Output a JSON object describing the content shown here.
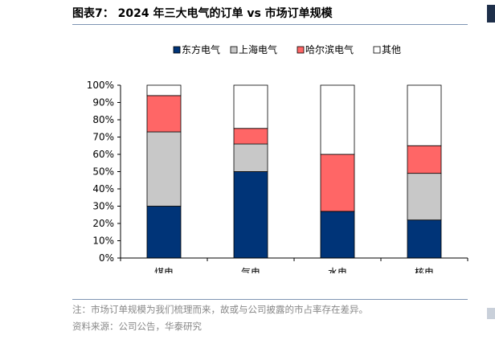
{
  "header": {
    "title": "图表7： 2024 年三大电气的订单 vs 市场订单规模"
  },
  "chart_data": {
    "type": "bar",
    "stacked": true,
    "normalized": true,
    "categories": [
      "煤电",
      "气电",
      "水电",
      "核电"
    ],
    "series": [
      {
        "name": "东方电气",
        "color": "#003478",
        "values": [
          30,
          50,
          27,
          22
        ]
      },
      {
        "name": "上海电气",
        "color": "#c8c8c8",
        "values": [
          43,
          16,
          0,
          27
        ]
      },
      {
        "name": "哈尔滨电气",
        "color": "#ff6666",
        "values": [
          21,
          9,
          33,
          16
        ]
      },
      {
        "name": "其他",
        "color": "#ffffff",
        "values": [
          6,
          25,
          40,
          35
        ]
      }
    ],
    "ylim": [
      0,
      100
    ],
    "yticks": [
      "0%",
      "10%",
      "20%",
      "30%",
      "40%",
      "50%",
      "60%",
      "70%",
      "80%",
      "90%",
      "100%"
    ],
    "grid": false,
    "legend": "top"
  },
  "footer": {
    "note": "注：市场订单规模为我们梳理而来，故或与公司披露的市占率存在差异。",
    "source": "资料来源：公司公告，华泰研究"
  }
}
